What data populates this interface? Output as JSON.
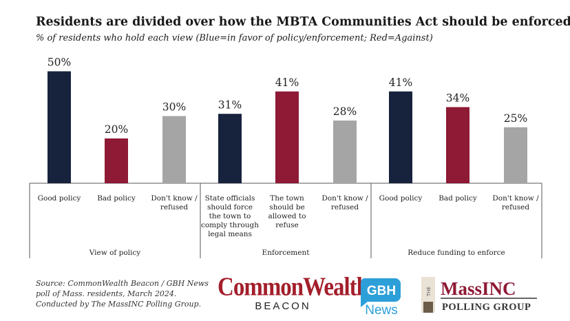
{
  "title": "Residents are divided over how the MBTA Communities Act should be enforced",
  "subtitle": "% of residents who hold each view (Blue=in favor of policy/enforcement; Red=Against)",
  "colors": {
    "favor": "#17223d",
    "against": "#8e1a35",
    "neutral": "#a5a5a5",
    "axis": "#555555"
  },
  "chart_data": {
    "type": "bar",
    "ylim": [
      0,
      52
    ],
    "groups": [
      {
        "label": "View of policy",
        "bars": [
          {
            "category": [
              "Good policy"
            ],
            "value": 50,
            "value_label": "50%",
            "kind": "favor"
          },
          {
            "category": [
              "Bad policy"
            ],
            "value": 20,
            "value_label": "20%",
            "kind": "against"
          },
          {
            "category": [
              "Don't know /",
              "refused"
            ],
            "value": 30,
            "value_label": "30%",
            "kind": "neutral"
          }
        ]
      },
      {
        "label": "Enforcement",
        "bars": [
          {
            "category": [
              "State officials",
              "should force",
              "the town to",
              "comply through",
              "legal means"
            ],
            "value": 31,
            "value_label": "31%",
            "kind": "favor"
          },
          {
            "category": [
              "The town",
              "should be",
              "allowed to",
              "refuse"
            ],
            "value": 41,
            "value_label": "41%",
            "kind": "against"
          },
          {
            "category": [
              "Don't know /",
              "refused"
            ],
            "value": 28,
            "value_label": "28%",
            "kind": "neutral"
          }
        ]
      },
      {
        "label": "Reduce funding to enforce",
        "bars": [
          {
            "category": [
              "Good policy"
            ],
            "value": 41,
            "value_label": "41%",
            "kind": "favor"
          },
          {
            "category": [
              "Bad policy"
            ],
            "value": 34,
            "value_label": "34%",
            "kind": "against"
          },
          {
            "category": [
              "Don't know /",
              "refused"
            ],
            "value": 25,
            "value_label": "25%",
            "kind": "neutral"
          }
        ]
      }
    ]
  },
  "source": {
    "line1": "Source: CommonWealth Beacon / GBH News",
    "line2": "poll of Mass. residents, March 2024.",
    "line3": "Conducted by The MassINC Polling Group."
  },
  "logos": {
    "commonwealth": "CommonWealth",
    "beacon": "BEACON",
    "gbh": "GBH",
    "news": "News",
    "the": "THE",
    "massinc": "MassINC",
    "polling_group": "POLLING GROUP"
  }
}
